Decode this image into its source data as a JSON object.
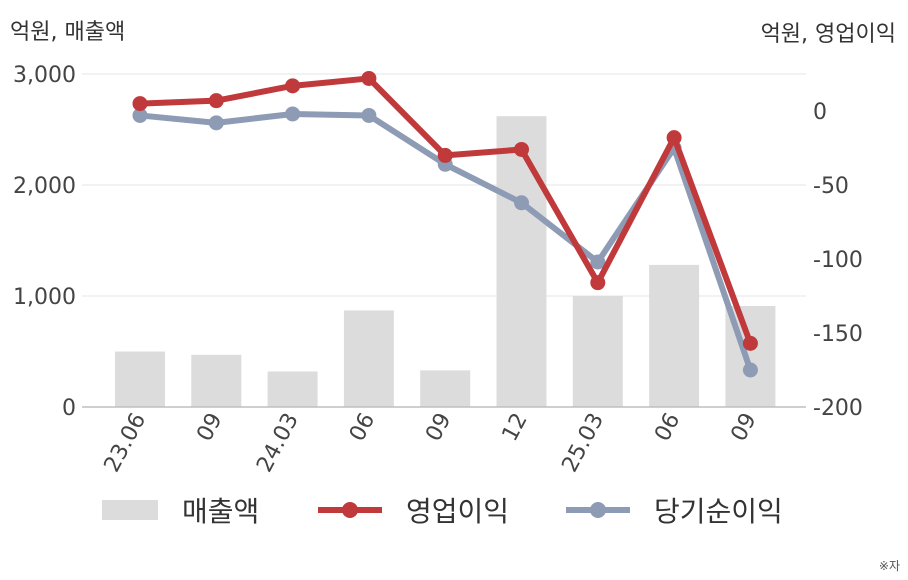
{
  "chart_data": {
    "type": "bar+line",
    "categories": [
      "23.06",
      "09",
      "24.03",
      "06",
      "09",
      "12",
      "25.03",
      "06",
      "09"
    ],
    "left_axis": {
      "unit_label": "억원, 매출액",
      "ylim": [
        0,
        3000
      ],
      "ticks": [
        0,
        1000,
        2000,
        3000
      ],
      "tick_labels": [
        "0",
        "1,000",
        "2,000",
        "3,000"
      ]
    },
    "right_axis": {
      "unit_label": "억원, 영업이익",
      "ylim": [
        -200,
        25
      ],
      "ticks": [
        -200,
        -150,
        -100,
        -50,
        0
      ],
      "tick_labels": [
        "-200",
        "-150",
        "-100",
        "-50",
        "0"
      ]
    },
    "series": [
      {
        "name": "매출액",
        "type": "bar",
        "axis": "left",
        "color": "#dcdcdc",
        "values": [
          500,
          470,
          320,
          870,
          330,
          2620,
          1000,
          1280,
          910
        ]
      },
      {
        "name": "영업이익",
        "type": "line",
        "axis": "right",
        "color": "#c0393b",
        "values": [
          5,
          7,
          17,
          22,
          -30,
          -26,
          -116,
          -18,
          -157
        ]
      },
      {
        "name": "당기순이익",
        "type": "line",
        "axis": "right",
        "color": "#8e9bb5",
        "values": [
          -3,
          -8,
          -2,
          -3,
          -36,
          -62,
          -102,
          -25,
          -175
        ]
      }
    ],
    "grid": true,
    "legend_position": "bottom"
  },
  "note": "※자"
}
